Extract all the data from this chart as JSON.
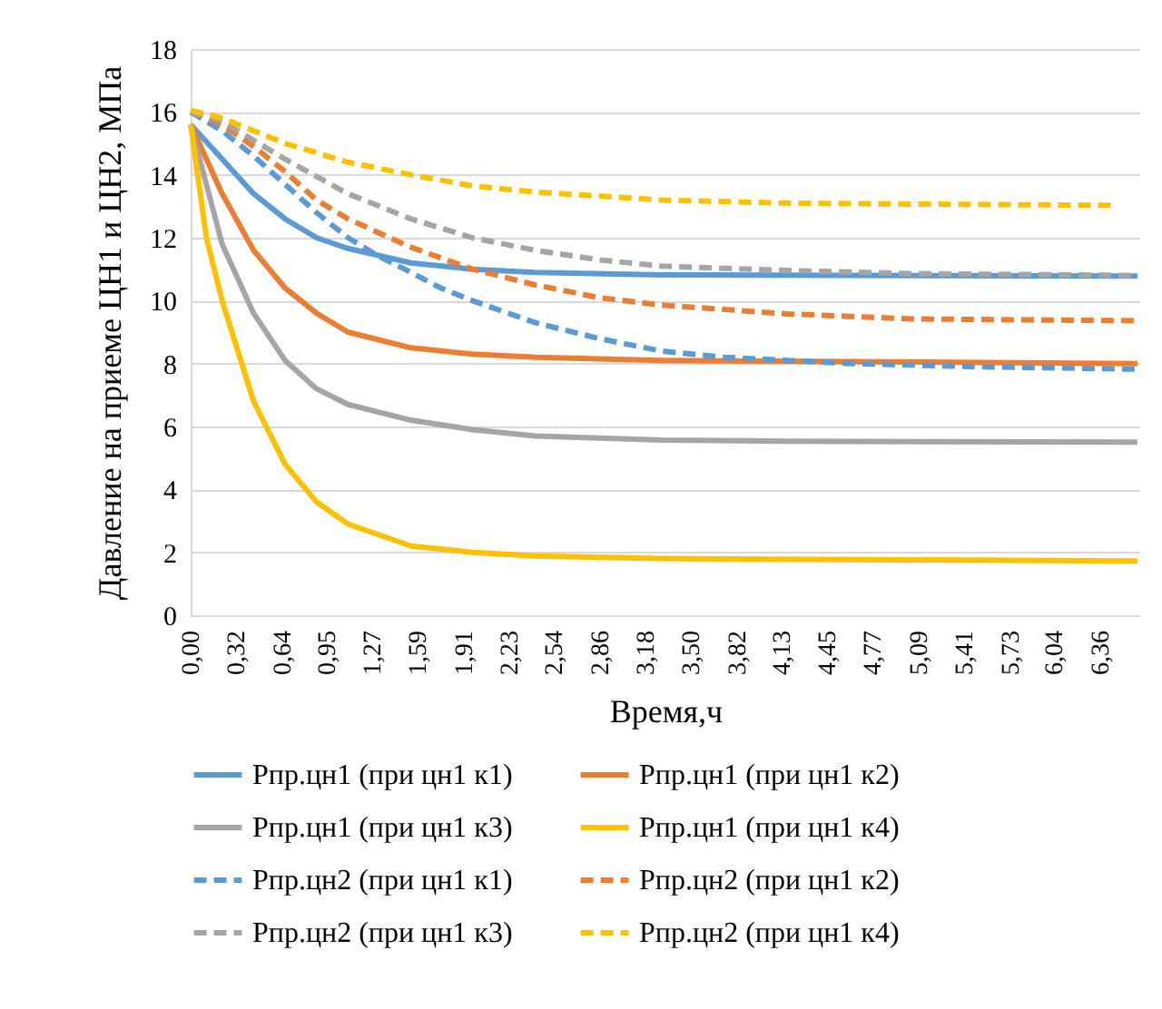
{
  "chart_data": {
    "type": "line",
    "xlabel": "Время,ч",
    "ylabel": "Давление на приеме ЦН1 и ЦН2, МПа",
    "xlim": [
      0,
      6.64
    ],
    "ylim": [
      0,
      18
    ],
    "yticks": [
      0,
      2,
      4,
      6,
      8,
      10,
      12,
      14,
      16,
      18
    ],
    "xticks": [
      {
        "value": 0,
        "label": "0,00"
      },
      {
        "value": 0.32,
        "label": "0,32"
      },
      {
        "value": 0.64,
        "label": "0,64"
      },
      {
        "value": 0.95,
        "label": "0,95"
      },
      {
        "value": 1.27,
        "label": "1,27"
      },
      {
        "value": 1.59,
        "label": "1,59"
      },
      {
        "value": 1.91,
        "label": "1,91"
      },
      {
        "value": 2.23,
        "label": "2,23"
      },
      {
        "value": 2.54,
        "label": "2,54"
      },
      {
        "value": 2.86,
        "label": "2,86"
      },
      {
        "value": 3.18,
        "label": "3,18"
      },
      {
        "value": 3.5,
        "label": "3,50"
      },
      {
        "value": 3.82,
        "label": "3,82"
      },
      {
        "value": 4.13,
        "label": "4,13"
      },
      {
        "value": 4.45,
        "label": "4,45"
      },
      {
        "value": 4.77,
        "label": "4,77"
      },
      {
        "value": 5.09,
        "label": "5,09"
      },
      {
        "value": 5.41,
        "label": "5,41"
      },
      {
        "value": 5.73,
        "label": "5,73"
      },
      {
        "value": 6.04,
        "label": "6,04"
      },
      {
        "value": 6.36,
        "label": "6,36"
      }
    ],
    "grid": "y",
    "legend": "bottom",
    "marker": "none",
    "series": [
      {
        "name": "Рпр.цн1 (при цн1 к1)",
        "color": "#5b9bd5",
        "line_style": "solid",
        "x": [
          0,
          0.22,
          0.44,
          0.66,
          0.88,
          1.1,
          1.54,
          1.97,
          2.41,
          3.29,
          6.62
        ],
        "values": [
          15.6,
          14.5,
          13.4,
          12.6,
          12.0,
          11.66,
          11.2,
          11.0,
          10.9,
          10.82,
          10.78
        ]
      },
      {
        "name": "Рпр.цн1 (при цн1 к2)",
        "color": "#ed7d31",
        "line_style": "solid",
        "x": [
          0,
          0.22,
          0.44,
          0.66,
          0.88,
          1.1,
          1.54,
          1.97,
          2.41,
          3.29,
          6.62
        ],
        "values": [
          15.6,
          13.4,
          11.6,
          10.4,
          9.6,
          9.0,
          8.5,
          8.3,
          8.2,
          8.1,
          8.0
        ]
      },
      {
        "name": "Рпр.цн1 (при цн1 к3)",
        "color": "#a5a5a5",
        "line_style": "solid",
        "x": [
          0,
          0.22,
          0.44,
          0.66,
          0.88,
          1.1,
          1.54,
          1.97,
          2.41,
          3.29,
          4.17,
          6.62
        ],
        "values": [
          15.6,
          11.8,
          9.6,
          8.1,
          7.2,
          6.7,
          6.2,
          5.9,
          5.7,
          5.57,
          5.53,
          5.5
        ]
      },
      {
        "name": "Рпр.цн1 (при цн1 к4)",
        "color": "#ffc000",
        "line_style": "solid",
        "x": [
          0,
          0.11,
          0.22,
          0.44,
          0.66,
          0.88,
          1.1,
          1.54,
          1.97,
          2.41,
          3.29,
          6.62
        ],
        "values": [
          15.6,
          12.0,
          10.0,
          6.8,
          4.8,
          3.6,
          2.9,
          2.2,
          2.0,
          1.88,
          1.8,
          1.72
        ]
      },
      {
        "name": "Рпр.цн2 (при цн1 к1)",
        "color": "#5b9bd5",
        "line_style": "dashed",
        "x": [
          0,
          0.22,
          0.44,
          0.66,
          0.88,
          1.1,
          1.32,
          1.54,
          1.75,
          1.97,
          2.41,
          2.85,
          3.29,
          3.73,
          4.61,
          5.48,
          6.62
        ],
        "values": [
          16.0,
          15.4,
          14.6,
          13.7,
          12.8,
          12.0,
          11.4,
          10.9,
          10.4,
          10.0,
          9.3,
          8.8,
          8.4,
          8.2,
          8.0,
          7.9,
          7.82
        ]
      },
      {
        "name": "Рпр.цн2 (при цн1 к2)",
        "color": "#ed7d31",
        "line_style": "dashed",
        "x": [
          0,
          0.22,
          0.44,
          0.66,
          0.88,
          1.1,
          1.54,
          1.97,
          2.41,
          2.85,
          3.29,
          4.17,
          5.04,
          6.62
        ],
        "values": [
          16.0,
          15.6,
          14.9,
          14.1,
          13.2,
          12.6,
          11.7,
          11.0,
          10.5,
          10.1,
          9.86,
          9.58,
          9.42,
          9.36
        ]
      },
      {
        "name": "Рпр.цн2 (при цн1 к3)",
        "color": "#a5a5a5",
        "line_style": "dashed",
        "x": [
          0,
          0.22,
          0.44,
          0.66,
          1.1,
          1.54,
          1.97,
          2.41,
          2.85,
          3.29,
          4.17,
          5.04,
          6.62
        ],
        "values": [
          16.0,
          15.7,
          15.1,
          14.5,
          13.4,
          12.6,
          12.0,
          11.6,
          11.3,
          11.1,
          10.96,
          10.86,
          10.8
        ]
      },
      {
        "name": "Рпр.цн2 (при цн1 к4)",
        "color": "#ffc000",
        "line_style": "dashed",
        "x": [
          0,
          0.22,
          0.66,
          1.1,
          1.54,
          1.97,
          2.41,
          3.29,
          4.17,
          5.04,
          6.45
        ],
        "values": [
          16.05,
          15.8,
          15.0,
          14.4,
          14.0,
          13.65,
          13.45,
          13.2,
          13.1,
          13.07,
          13.03
        ]
      }
    ]
  }
}
